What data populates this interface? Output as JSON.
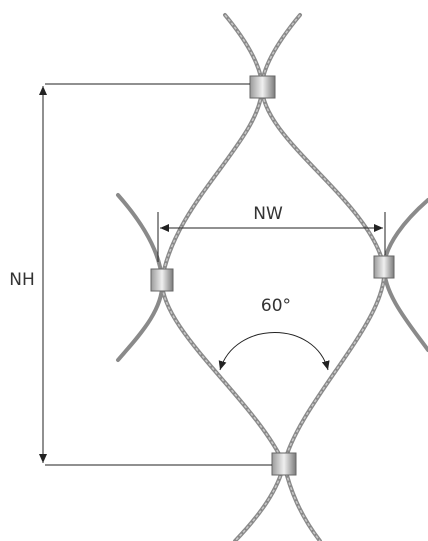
{
  "labels": {
    "height": "NH",
    "width": "NW",
    "angle": "60°"
  }
}
